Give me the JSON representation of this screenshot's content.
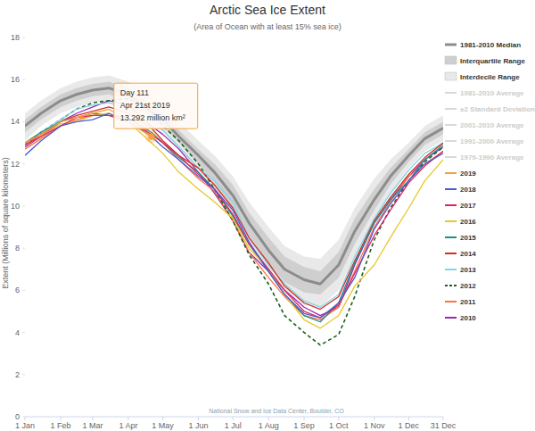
{
  "chart_data": {
    "type": "line",
    "title": "Arctic Sea Ice Extent",
    "subtitle": "(Area of Ocean with at least 15% sea ice)",
    "y_label": "Extent (Millions of square kilometers)",
    "credit": "National Snow and Ice Data Center, Boulder, CO",
    "xlim": [
      1,
      365
    ],
    "ylim": [
      0,
      18
    ],
    "xticks": [
      {
        "value": 1,
        "label": "1 Jan"
      },
      {
        "value": 32,
        "label": "1 Feb"
      },
      {
        "value": 60,
        "label": "1 Mar"
      },
      {
        "value": 91,
        "label": "1 Apr"
      },
      {
        "value": 121,
        "label": "1 May"
      },
      {
        "value": 152,
        "label": "1 Jun"
      },
      {
        "value": 182,
        "label": "1 Jul"
      },
      {
        "value": 213,
        "label": "1 Aug"
      },
      {
        "value": 244,
        "label": "1 Sep"
      },
      {
        "value": 274,
        "label": "1 Oct"
      },
      {
        "value": 305,
        "label": "1 Nov"
      },
      {
        "value": 335,
        "label": "1 Dec"
      },
      {
        "value": 365,
        "label": "31 Dec"
      }
    ],
    "yticks": [
      0,
      2,
      4,
      6,
      8,
      10,
      12,
      14,
      16,
      18
    ],
    "grid": false,
    "legend": "right",
    "x": [
      1,
      15,
      32,
      46,
      60,
      74,
      91,
      111,
      121,
      135,
      152,
      166,
      182,
      196,
      213,
      227,
      244,
      258,
      274,
      288,
      305,
      319,
      335,
      349,
      365
    ],
    "series": [
      {
        "name": "1981-2010 Median",
        "type": "line",
        "color": "#8c8c8c",
        "values": [
          13.8,
          14.4,
          15.0,
          15.3,
          15.5,
          15.6,
          15.3,
          14.5,
          14.1,
          13.3,
          12.4,
          11.6,
          10.5,
          9.2,
          7.9,
          7.0,
          6.5,
          6.3,
          7.2,
          8.8,
          10.3,
          11.4,
          12.4,
          13.2,
          13.7
        ]
      },
      {
        "name": "Interquartile Range",
        "type": "range",
        "color": "#cfcfcf",
        "low": [
          13.5,
          14.1,
          14.7,
          15.0,
          15.2,
          15.3,
          15.0,
          14.2,
          13.8,
          13.0,
          12.0,
          11.1,
          9.9,
          8.6,
          7.3,
          6.4,
          5.9,
          5.8,
          6.6,
          8.2,
          9.8,
          11.0,
          12.1,
          12.9,
          13.4
        ],
        "high": [
          14.1,
          14.7,
          15.3,
          15.6,
          15.8,
          15.9,
          15.6,
          14.8,
          14.4,
          13.6,
          12.7,
          12.0,
          11.0,
          9.7,
          8.5,
          7.6,
          7.1,
          6.9,
          7.8,
          9.4,
          10.8,
          11.8,
          12.7,
          13.5,
          14.0
        ]
      },
      {
        "name": "Interdecile Range",
        "type": "range",
        "color": "#e9e9e9",
        "low": [
          13.1,
          13.8,
          14.4,
          14.7,
          14.9,
          15.0,
          14.7,
          13.9,
          13.5,
          12.7,
          11.7,
          10.7,
          9.5,
          8.1,
          6.8,
          5.8,
          5.3,
          5.2,
          6.0,
          7.6,
          9.3,
          10.6,
          11.8,
          12.6,
          13.1
        ],
        "high": [
          14.4,
          15.0,
          15.6,
          15.9,
          16.1,
          16.2,
          15.9,
          15.1,
          14.7,
          14.0,
          13.1,
          12.4,
          11.4,
          10.2,
          9.0,
          8.1,
          7.6,
          7.5,
          8.4,
          9.9,
          11.3,
          12.2,
          13.0,
          13.8,
          14.3
        ]
      },
      {
        "name": "2019",
        "type": "line",
        "color": "#f5a03c",
        "values": [
          13.0,
          13.4,
          14.0,
          14.2,
          14.4,
          14.6,
          14.0,
          13.292,
          null,
          null,
          null,
          null,
          null,
          null,
          null,
          null,
          null,
          null,
          null,
          null,
          null,
          null,
          null,
          null,
          null
        ]
      },
      {
        "name": "2018",
        "type": "line",
        "color": "#4a5bd4",
        "values": [
          12.4,
          13.1,
          13.8,
          14.0,
          14.1,
          14.4,
          14.0,
          13.3,
          12.8,
          12.2,
          11.4,
          10.8,
          9.8,
          8.3,
          6.9,
          5.8,
          4.9,
          4.7,
          5.4,
          6.6,
          8.9,
          10.1,
          11.2,
          12.0,
          12.5
        ]
      },
      {
        "name": "2017",
        "type": "line",
        "color": "#e3245c",
        "values": [
          12.9,
          13.3,
          13.8,
          14.2,
          14.3,
          14.3,
          14.0,
          13.4,
          13.0,
          12.4,
          11.5,
          10.8,
          9.6,
          8.2,
          7.0,
          6.0,
          5.0,
          4.7,
          5.3,
          6.8,
          8.6,
          9.8,
          11.1,
          11.9,
          12.6
        ]
      },
      {
        "name": "2016",
        "type": "line",
        "color": "#e8c72a",
        "values": [
          12.9,
          13.3,
          13.9,
          14.0,
          14.3,
          14.4,
          14.0,
          13.0,
          12.5,
          11.6,
          10.8,
          10.2,
          9.4,
          8.0,
          7.0,
          5.8,
          4.6,
          4.2,
          4.8,
          6.2,
          7.2,
          8.5,
          9.9,
          11.2,
          12.2
        ]
      },
      {
        "name": "2015",
        "type": "line",
        "color": "#1b8f8a",
        "values": [
          13.0,
          13.5,
          14.0,
          14.2,
          14.4,
          14.3,
          14.2,
          13.5,
          13.0,
          12.3,
          11.6,
          10.8,
          9.5,
          8.2,
          6.9,
          5.8,
          4.8,
          4.5,
          5.4,
          7.3,
          9.2,
          10.3,
          11.2,
          12.2,
          12.9
        ]
      },
      {
        "name": "2014",
        "type": "line",
        "color": "#d62d20",
        "values": [
          12.9,
          13.4,
          14.0,
          14.3,
          14.5,
          14.7,
          14.4,
          13.7,
          13.1,
          12.4,
          11.8,
          11.0,
          9.9,
          8.5,
          7.3,
          6.2,
          5.4,
          5.1,
          5.7,
          7.4,
          9.3,
          10.4,
          11.5,
          12.3,
          13.0
        ]
      },
      {
        "name": "2013",
        "type": "line",
        "color": "#7fd6e8",
        "values": [
          13.0,
          13.5,
          14.1,
          14.6,
          14.8,
          14.9,
          14.6,
          14.1,
          13.6,
          12.8,
          11.8,
          11.2,
          10.2,
          8.5,
          7.2,
          6.3,
          5.5,
          5.2,
          5.8,
          7.6,
          9.4,
          10.6,
          11.7,
          12.5,
          13.0
        ]
      },
      {
        "name": "2012",
        "type": "line",
        "color": "#1a5e20",
        "line_style": "dashed",
        "values": [
          12.9,
          13.5,
          14.1,
          14.6,
          14.9,
          15.0,
          15.1,
          14.5,
          13.8,
          13.1,
          12.0,
          10.8,
          9.3,
          7.7,
          6.3,
          4.8,
          4.0,
          3.4,
          3.9,
          5.7,
          8.4,
          9.9,
          11.2,
          12.1,
          12.8
        ]
      },
      {
        "name": "2011",
        "type": "line",
        "color": "#ff7043",
        "values": [
          12.7,
          13.2,
          13.8,
          14.1,
          14.3,
          14.3,
          14.2,
          13.4,
          13.0,
          12.2,
          11.3,
          10.7,
          9.3,
          7.8,
          6.6,
          5.7,
          4.8,
          4.6,
          5.2,
          6.9,
          9.0,
          10.2,
          11.4,
          12.0,
          12.6
        ]
      },
      {
        "name": "2010",
        "type": "line",
        "color": "#9c27b0",
        "values": [
          12.8,
          13.3,
          14.0,
          14.4,
          14.7,
          15.0,
          14.8,
          13.8,
          13.4,
          12.7,
          11.6,
          10.6,
          9.3,
          7.8,
          6.9,
          6.0,
          5.2,
          4.8,
          5.2,
          7.2,
          9.2,
          10.3,
          11.4,
          12.2,
          12.8
        ]
      }
    ],
    "inactive_legend": [
      "1981-2010 Average",
      "±2 Standard Deviation",
      "2001-2010 Average",
      "1991-2000 Average",
      "1979-1990 Average"
    ],
    "annotation": {
      "lines": [
        "Day 111",
        "Apr 21st 2019",
        "13.292 million km²"
      ],
      "x": 111,
      "y": 13.292
    }
  }
}
